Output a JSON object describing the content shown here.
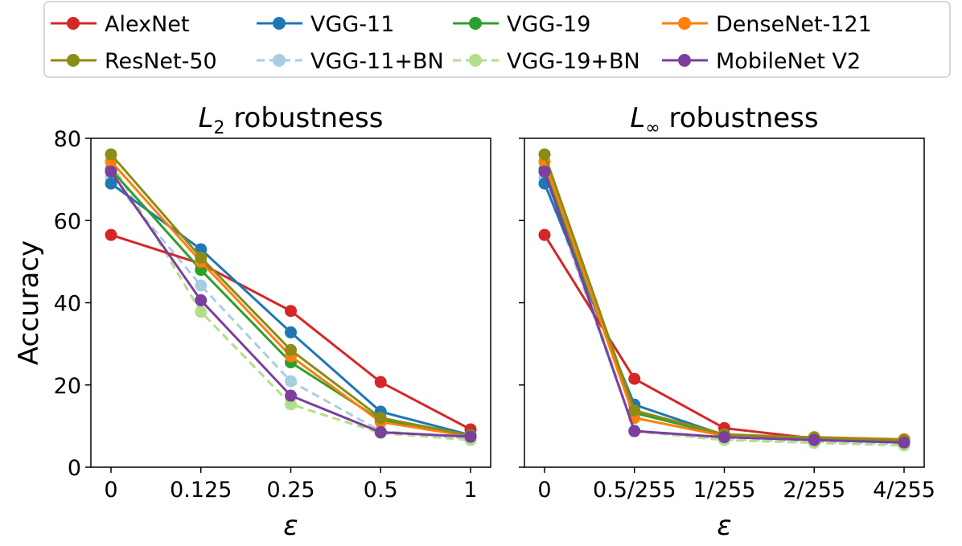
{
  "legend": [
    {
      "name": "AlexNet",
      "color": "#d62728",
      "dashed": false
    },
    {
      "name": "VGG-11",
      "color": "#1f77b4",
      "dashed": false
    },
    {
      "name": "VGG-19",
      "color": "#2ca02c",
      "dashed": false
    },
    {
      "name": "DenseNet-121",
      "color": "#ff7f0e",
      "dashed": false
    },
    {
      "name": "ResNet-50",
      "color": "#8c8c17",
      "dashed": false
    },
    {
      "name": "VGG-11+BN",
      "color": "#a6cee3",
      "dashed": true
    },
    {
      "name": "VGG-19+BN",
      "color": "#b2df8a",
      "dashed": true
    },
    {
      "name": "MobileNet V2",
      "color": "#7b3f9e",
      "dashed": false
    }
  ],
  "chart_data": [
    {
      "type": "line",
      "title_base": "L",
      "title_sub": "2",
      "title_rest": " robustness",
      "xlabel": "ε",
      "ylabel": "Accuracy",
      "ylim": [
        0,
        80
      ],
      "yticks": [
        "0",
        "20",
        "40",
        "60",
        "80"
      ],
      "categories": [
        "0",
        "0.125",
        "0.25",
        "0.5",
        "1"
      ],
      "series": [
        {
          "name": "AlexNet",
          "values": [
            56.5,
            49.5,
            38.0,
            20.7,
            9.2
          ]
        },
        {
          "name": "VGG-11",
          "values": [
            69.0,
            53.0,
            32.8,
            13.5,
            7.8
          ]
        },
        {
          "name": "VGG-19",
          "values": [
            72.4,
            48.0,
            25.5,
            11.5,
            7.7
          ]
        },
        {
          "name": "DenseNet-121",
          "values": [
            74.4,
            50.0,
            27.0,
            11.0,
            7.5
          ]
        },
        {
          "name": "ResNet-50",
          "values": [
            76.1,
            51.0,
            28.5,
            12.0,
            7.7
          ]
        },
        {
          "name": "VGG-11+BN",
          "values": [
            70.4,
            44.2,
            20.9,
            8.8,
            6.9
          ]
        },
        {
          "name": "VGG-19+BN",
          "values": [
            74.2,
            37.8,
            15.3,
            8.3,
            6.6
          ]
        },
        {
          "name": "MobileNet V2",
          "values": [
            71.9,
            40.6,
            17.4,
            8.5,
            7.4
          ]
        }
      ]
    },
    {
      "type": "line",
      "title_base": "L",
      "title_sub": "∞",
      "title_rest": " robustness",
      "xlabel": "ε",
      "ylabel": "",
      "ylim": [
        0,
        80
      ],
      "yticks": [
        "0",
        "20",
        "40",
        "60",
        "80"
      ],
      "categories": [
        "0",
        "0.5/255",
        "1/255",
        "2/255",
        "4/255"
      ],
      "series": [
        {
          "name": "AlexNet",
          "values": [
            56.5,
            21.5,
            9.5,
            7.0,
            6.3
          ]
        },
        {
          "name": "VGG-11",
          "values": [
            69.0,
            15.2,
            7.8,
            6.8,
            6.2
          ]
        },
        {
          "name": "VGG-19",
          "values": [
            72.4,
            13.2,
            7.8,
            6.9,
            6.4
          ]
        },
        {
          "name": "DenseNet-121",
          "values": [
            74.4,
            12.0,
            7.6,
            7.3,
            6.8
          ]
        },
        {
          "name": "ResNet-50",
          "values": [
            76.1,
            13.8,
            8.0,
            7.2,
            6.6
          ]
        },
        {
          "name": "VGG-11+BN",
          "values": [
            70.4,
            8.9,
            6.8,
            6.2,
            5.6
          ]
        },
        {
          "name": "VGG-19+BN",
          "values": [
            74.2,
            8.7,
            6.6,
            5.9,
            5.3
          ]
        },
        {
          "name": "MobileNet V2",
          "values": [
            71.9,
            8.8,
            7.3,
            6.6,
            6.0
          ]
        }
      ]
    }
  ]
}
